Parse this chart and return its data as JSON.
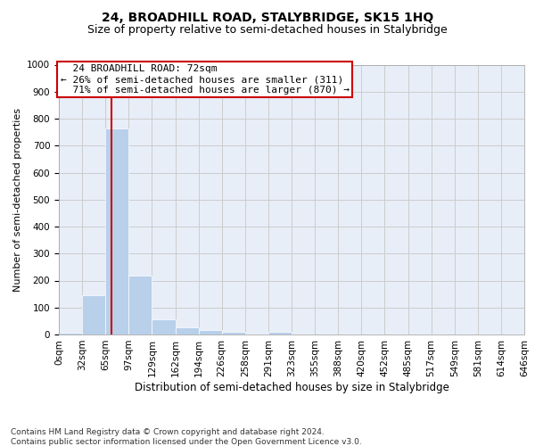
{
  "title1": "24, BROADHILL ROAD, STALYBRIDGE, SK15 1HQ",
  "title2": "Size of property relative to semi-detached houses in Stalybridge",
  "xlabel": "Distribution of semi-detached houses by size in Stalybridge",
  "ylabel": "Number of semi-detached properties",
  "bar_values": [
    8,
    145,
    762,
    218,
    57,
    25,
    15,
    10,
    0,
    10,
    0,
    0,
    0,
    0,
    0,
    0,
    0,
    0,
    0,
    0
  ],
  "bin_labels": [
    "0sqm",
    "32sqm",
    "65sqm",
    "97sqm",
    "129sqm",
    "162sqm",
    "194sqm",
    "226sqm",
    "258sqm",
    "291sqm",
    "323sqm",
    "355sqm",
    "388sqm",
    "420sqm",
    "452sqm",
    "485sqm",
    "517sqm",
    "549sqm",
    "581sqm",
    "614sqm",
    "646sqm"
  ],
  "bar_color": "#b8d0ea",
  "bar_edge_color": "#b8d0ea",
  "red_line_color": "#cc0000",
  "annotation_line1": "  24 BROADHILL ROAD: 72sqm",
  "annotation_line2": "← 26% of semi-detached houses are smaller (311)",
  "annotation_line3": "  71% of semi-detached houses are larger (870) →",
  "ylim": [
    0,
    1000
  ],
  "yticks": [
    0,
    100,
    200,
    300,
    400,
    500,
    600,
    700,
    800,
    900,
    1000
  ],
  "grid_color": "#cccccc",
  "bg_color": "#e8eef8",
  "footer_text": "Contains HM Land Registry data © Crown copyright and database right 2024.\nContains public sector information licensed under the Open Government Licence v3.0.",
  "title1_fontsize": 10,
  "title2_fontsize": 9,
  "xlabel_fontsize": 8.5,
  "ylabel_fontsize": 8,
  "tick_fontsize": 7.5,
  "annotation_fontsize": 8,
  "footer_fontsize": 6.5,
  "bin_width": 32,
  "property_size": 72,
  "n_bins": 20
}
